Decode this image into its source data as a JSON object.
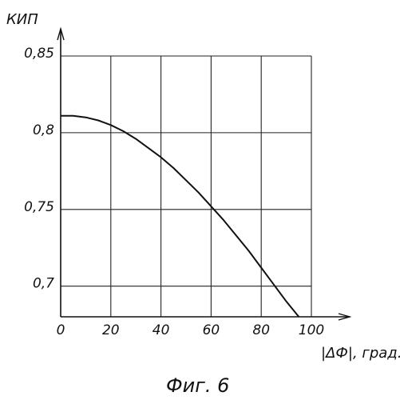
{
  "chart_data": {
    "type": "line",
    "ylabel": "КИП",
    "xlabel": "|ΔФ|, град.",
    "caption": "Фиг. 6",
    "xlim": [
      0,
      100
    ],
    "ylim": [
      0.68,
      0.85
    ],
    "x_ticks": [
      0,
      20,
      40,
      60,
      80,
      100
    ],
    "x_tick_labels": [
      "0",
      "20",
      "40",
      "60",
      "80",
      "100"
    ],
    "y_ticks": [
      0.7,
      0.75,
      0.8,
      0.85
    ],
    "y_tick_labels": [
      "0,7",
      "0,75",
      "0,8",
      "0,85"
    ],
    "grid": true,
    "series": [
      {
        "x": [
          0,
          5,
          10,
          15,
          20,
          25,
          30,
          35,
          40,
          45,
          50,
          55,
          60,
          65,
          70,
          75,
          80,
          85,
          90,
          95,
          100
        ],
        "y": [
          0.811,
          0.811,
          0.81,
          0.808,
          0.805,
          0.801,
          0.796,
          0.79,
          0.784,
          0.777,
          0.769,
          0.761,
          0.752,
          0.743,
          0.733,
          0.723,
          0.712,
          0.701,
          0.69,
          0.68,
          0.669
        ]
      }
    ]
  }
}
